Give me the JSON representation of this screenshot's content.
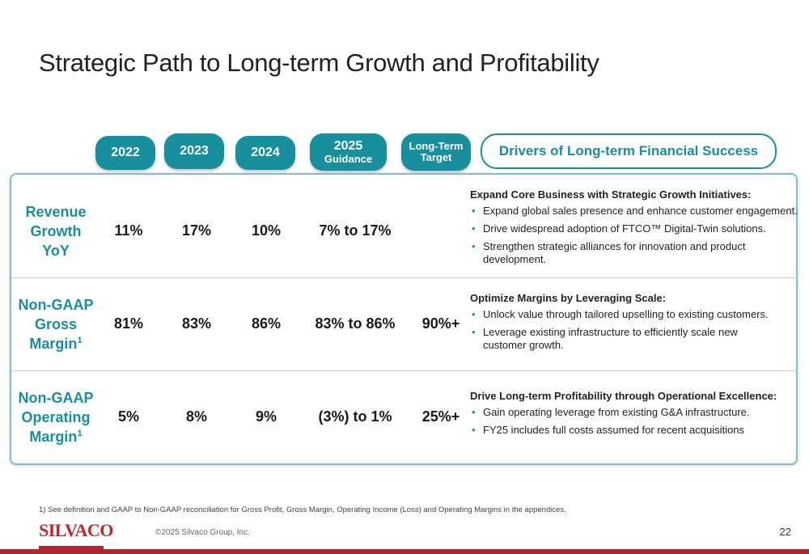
{
  "title": "Strategic Path to Long-term Growth and Profitability",
  "columns": {
    "y2022": "2022",
    "y2023": "2023",
    "y2024": "2024",
    "y2025": "2025",
    "y2025_sub": "Guidance",
    "lt_line1": "Long-Term",
    "lt_line2": "Target",
    "drivers": "Drivers of Long-term Financial Success"
  },
  "rows": [
    {
      "label_lines": [
        "Revenue",
        "Growth",
        "YoY"
      ],
      "values": [
        "11%",
        "17%",
        "10%",
        "7% to 17%",
        ""
      ],
      "driver_heading": "Expand Core Business with Strategic Growth Initiatives:",
      "driver_bullets": [
        "Expand global sales presence and enhance customer engagement.",
        "Drive widespread adoption of FTCO™ Digital-Twin solutions.",
        "Strengthen strategic alliances for innovation and product development."
      ]
    },
    {
      "label_lines": [
        "Non-GAAP",
        "Gross",
        "Margin"
      ],
      "label_sup": "1",
      "values": [
        "81%",
        "83%",
        "86%",
        "83% to 86%",
        "90%+"
      ],
      "driver_heading": "Optimize Margins by Leveraging Scale:",
      "driver_bullets": [
        "Unlock value through tailored upselling to existing customers.",
        "Leverage existing infrastructure to efficiently scale new customer growth."
      ]
    },
    {
      "label_lines": [
        "Non-GAAP",
        "Operating",
        "Margin"
      ],
      "label_sup": "1",
      "values": [
        "5%",
        "8%",
        "9%",
        "(3%) to 1%",
        "25%+"
      ],
      "driver_heading": "Drive Long-term Profitability through Operational Excellence:",
      "driver_bullets": [
        "Gain operating leverage from existing G&A infrastructure.",
        "FY25 includes full costs assumed for recent acquisitions"
      ]
    }
  ],
  "footnote": "1)  See definition and GAAP to Non-GAAP reconciliation for Gross Profit, Gross Margin, Operating Income (Loss)  and Operating Margins in the appendices.",
  "logo": "SILVACO",
  "copyright": "©2025 Silvaco Group, Inc.",
  "page_number": "22",
  "colors": {
    "accent": "#178f9c",
    "brand_red": "#c0272d"
  }
}
